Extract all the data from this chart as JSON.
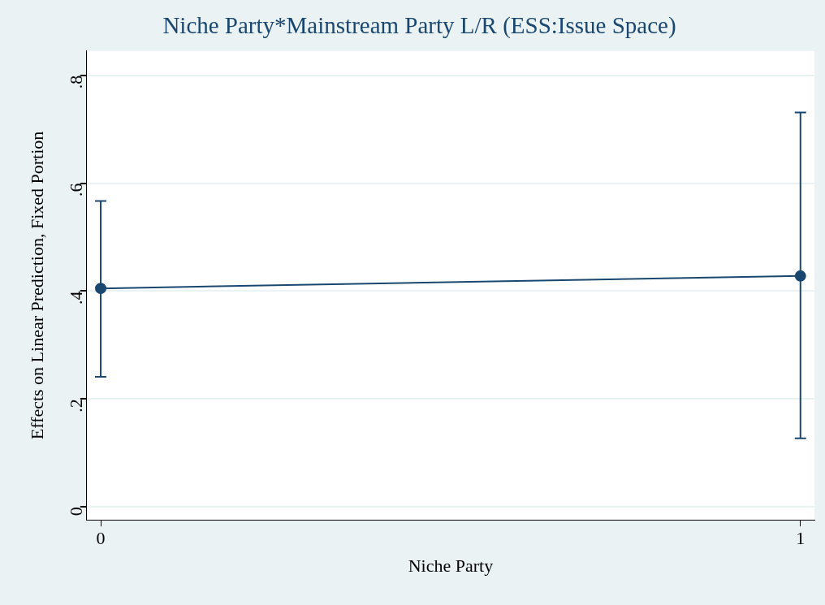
{
  "chart_data": {
    "type": "line",
    "title": "Niche Party*Mainstream Party L/R (ESS:Issue Space)",
    "xlabel": "Niche Party",
    "ylabel": "Effects on Linear Prediction, Fixed Portion",
    "x": [
      0,
      1
    ],
    "series": [
      {
        "color": "#1a476f",
        "values": [
          0.405,
          0.428
        ],
        "errors": [
          [
            0.241,
            0.567
          ],
          [
            0.127,
            0.731
          ]
        ]
      }
    ],
    "xlim": [
      -0.02,
      1.02
    ],
    "xticks": [
      0,
      1
    ],
    "ylim": [
      -0.024,
      0.845
    ],
    "yticks": [
      {
        "value": 0,
        "label": "0"
      },
      {
        "value": 0.2,
        "label": ".2"
      },
      {
        "value": 0.4,
        "label": ".4"
      },
      {
        "value": 0.6,
        "label": ".6"
      },
      {
        "value": 0.8,
        "label": ".8"
      }
    ],
    "grid": "y",
    "marker": "circle",
    "line_style": "solid",
    "legend": false
  }
}
